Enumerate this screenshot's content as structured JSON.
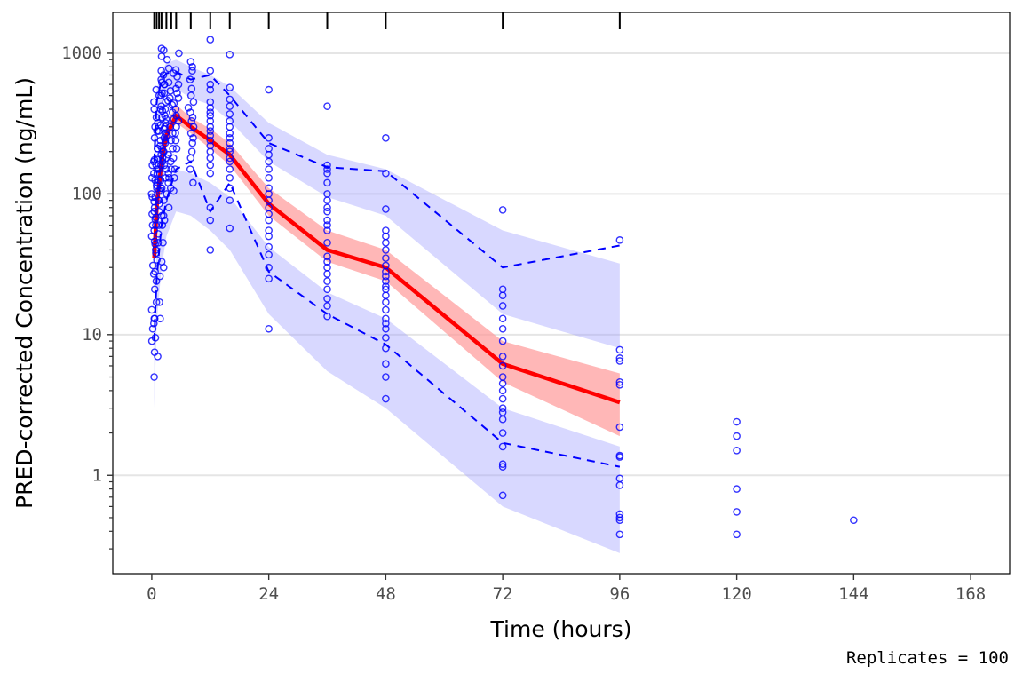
{
  "chart_data": {
    "type": "line",
    "xlabel": "Time (hours)",
    "ylabel": "PRED-corrected Concentration (ng/mL)",
    "caption": "Replicates = 100",
    "xlim": [
      -8,
      176
    ],
    "ylim": [
      0.2,
      1950
    ],
    "yscale": "log",
    "x_ticks": [
      0,
      24,
      48,
      72,
      96,
      120,
      144,
      168
    ],
    "y_ticks": [
      1,
      10,
      100,
      1000
    ],
    "y_tick_labels": [
      "1",
      "10",
      "100",
      "1000"
    ],
    "y_minor_ticks": [
      0.3,
      0.4,
      0.5,
      0.6,
      0.7,
      0.8,
      0.9,
      2,
      3,
      4,
      5,
      6,
      7,
      8,
      9,
      20,
      30,
      40,
      50,
      60,
      70,
      80,
      90,
      200,
      300,
      400,
      500,
      600,
      700,
      800,
      900
    ],
    "grid": {
      "horizontal_major": true,
      "vertical": false
    },
    "bin_rug": [
      0.5,
      1,
      1.5,
      2,
      3,
      4,
      5,
      8,
      12,
      16,
      24,
      36,
      48,
      72,
      96
    ],
    "colors": {
      "points": "#0000ff",
      "median_line": "#ff0000",
      "median_band": "#ff9999",
      "percentile_lines": "#0000ff",
      "percentile_band": "#9999ff",
      "grid": "#e5e5e5"
    },
    "series": [
      {
        "name": "observed median",
        "style": "solid",
        "x": [
          0.5,
          1,
          2,
          3,
          5,
          8,
          12,
          16,
          24,
          36,
          48,
          72,
          96
        ],
        "y": [
          35,
          80,
          170,
          260,
          360,
          300,
          240,
          190,
          85,
          40,
          30,
          6.2,
          3.3
        ]
      },
      {
        "name": "observed 95th percentile",
        "style": "dashed",
        "x": [
          0.5,
          1,
          2,
          3,
          5,
          8,
          12,
          16,
          24,
          36,
          48,
          72,
          96
        ],
        "y": [
          170,
          450,
          650,
          720,
          740,
          650,
          700,
          500,
          230,
          155,
          145,
          30,
          43
        ]
      },
      {
        "name": "observed 5th percentile",
        "style": "dashed",
        "x": [
          0.5,
          1,
          2,
          3,
          5,
          8,
          12,
          16,
          24,
          36,
          48,
          72,
          96
        ],
        "y": [
          9,
          25,
          60,
          90,
          150,
          170,
          75,
          120,
          28,
          14,
          8.5,
          1.7,
          1.15
        ]
      }
    ],
    "bands": [
      {
        "name": "median prediction interval",
        "x": [
          0.5,
          1,
          2,
          3,
          5,
          8,
          12,
          16,
          24,
          36,
          48,
          72,
          96
        ],
        "lo": [
          20,
          60,
          150,
          230,
          320,
          270,
          210,
          160,
          70,
          33,
          24,
          4.6,
          1.9
        ],
        "hi": [
          50,
          110,
          210,
          310,
          430,
          350,
          290,
          230,
          110,
          55,
          40,
          9,
          5.3
        ]
      },
      {
        "name": "95th percentile prediction interval",
        "x": [
          0.5,
          1,
          2,
          3,
          5,
          8,
          12,
          16,
          24,
          36,
          48,
          72,
          96
        ],
        "lo": [
          100,
          250,
          420,
          520,
          560,
          480,
          430,
          330,
          170,
          95,
          70,
          14,
          8
        ],
        "hi": [
          250,
          550,
          750,
          850,
          900,
          800,
          700,
          580,
          320,
          190,
          150,
          55,
          32
        ]
      },
      {
        "name": "5th percentile prediction interval",
        "x": [
          0.5,
          1,
          2,
          3,
          5,
          8,
          12,
          16,
          24,
          36,
          48,
          72,
          96
        ],
        "lo": [
          3,
          12,
          30,
          50,
          75,
          70,
          55,
          40,
          14,
          5.5,
          3,
          0.6,
          0.28
        ],
        "hi": [
          12,
          40,
          80,
          110,
          150,
          140,
          120,
          95,
          42,
          20,
          13,
          3,
          1.6
        ]
      }
    ],
    "observed_points": [
      {
        "x": 0.5,
        "y": [
          5,
          7.5,
          9,
          11,
          12,
          13,
          15,
          17,
          21,
          27,
          31,
          38,
          44,
          50,
          55,
          60,
          66,
          72,
          80,
          88,
          95,
          100,
          110,
          120,
          130,
          140,
          150,
          160,
          170,
          175
        ]
      },
      {
        "x": 1,
        "y": [
          7,
          9.5,
          13,
          17,
          24,
          28,
          34,
          40,
          46,
          52,
          60,
          68,
          75,
          85,
          95,
          105,
          115,
          125,
          140,
          160,
          180,
          210,
          250,
          300,
          350,
          400,
          450,
          550
        ]
      },
      {
        "x": 1.5,
        "y": [
          13,
          26,
          33,
          45,
          60,
          75,
          90,
          105,
          125,
          150,
          175,
          210,
          240,
          280,
          320,
          400,
          500,
          620,
          950
        ]
      },
      {
        "x": 2,
        "y": [
          30,
          45,
          60,
          70,
          90,
          110,
          125,
          140,
          160,
          180,
          200,
          220,
          250,
          280,
          310,
          350,
          420,
          500,
          600,
          750,
          1050
        ]
      },
      {
        "x": 2.5,
        "y": [
          65,
          90,
          110,
          130,
          150,
          170,
          190,
          210,
          240,
          270,
          300,
          340,
          390,
          450,
          520,
          650,
          1080
        ]
      },
      {
        "x": 3,
        "y": [
          70,
          100,
          120,
          140,
          160,
          180,
          200,
          230,
          260,
          290,
          320,
          360,
          400,
          460,
          520,
          600,
          700,
          900
        ]
      },
      {
        "x": 4,
        "y": [
          80,
          110,
          130,
          150,
          170,
          190,
          210,
          240,
          270,
          300,
          340,
          380,
          430,
          480,
          540,
          620,
          720,
          780
        ]
      },
      {
        "x": 5,
        "y": [
          105,
          130,
          150,
          180,
          210,
          240,
          270,
          300,
          330,
          360,
          400,
          440,
          480,
          520,
          560,
          600,
          680,
          760,
          1000
        ]
      },
      {
        "x": 8,
        "y": [
          120,
          150,
          180,
          200,
          230,
          250,
          270,
          300,
          330,
          350,
          380,
          410,
          450,
          500,
          560,
          650,
          750,
          800,
          870
        ]
      },
      {
        "x": 12,
        "y": [
          40,
          65,
          80,
          140,
          160,
          180,
          200,
          220,
          240,
          260,
          280,
          300,
          330,
          360,
          380,
          410,
          450,
          550,
          600,
          750,
          1250
        ]
      },
      {
        "x": 16,
        "y": [
          57,
          90,
          110,
          130,
          150,
          170,
          180,
          200,
          210,
          230,
          250,
          270,
          300,
          330,
          370,
          420,
          470,
          570,
          980
        ]
      },
      {
        "x": 24,
        "y": [
          11,
          25,
          30,
          37,
          42,
          50,
          55,
          65,
          72,
          80,
          90,
          100,
          110,
          130,
          150,
          170,
          190,
          210,
          250,
          550
        ]
      },
      {
        "x": 36,
        "y": [
          13.5,
          16,
          18,
          21,
          24,
          27,
          30,
          33,
          36,
          45,
          55,
          60,
          65,
          75,
          80,
          90,
          100,
          120,
          140,
          150,
          160,
          420
        ]
      },
      {
        "x": 48,
        "y": [
          3.5,
          5,
          6.2,
          8,
          9.5,
          11,
          12,
          13,
          15,
          17,
          19,
          21,
          22,
          24,
          26,
          28,
          31,
          35,
          40,
          45,
          50,
          55,
          78,
          140,
          250
        ]
      },
      {
        "x": 72,
        "y": [
          0.72,
          1.15,
          1.2,
          1.6,
          2,
          2.5,
          2.8,
          3,
          3.5,
          4,
          4.5,
          5,
          6,
          7,
          9,
          11,
          13,
          16,
          19,
          21,
          77
        ]
      },
      {
        "x": 96,
        "y": [
          0.38,
          0.48,
          0.5,
          0.53,
          0.85,
          0.95,
          1.35,
          1.38,
          2.2,
          4.4,
          4.6,
          6.5,
          6.8,
          7.8,
          47
        ]
      },
      {
        "x": 120,
        "y": [
          0.38,
          0.55,
          0.8,
          1.5,
          1.9,
          2.4
        ]
      },
      {
        "x": 144,
        "y": [
          0.48
        ]
      }
    ]
  }
}
